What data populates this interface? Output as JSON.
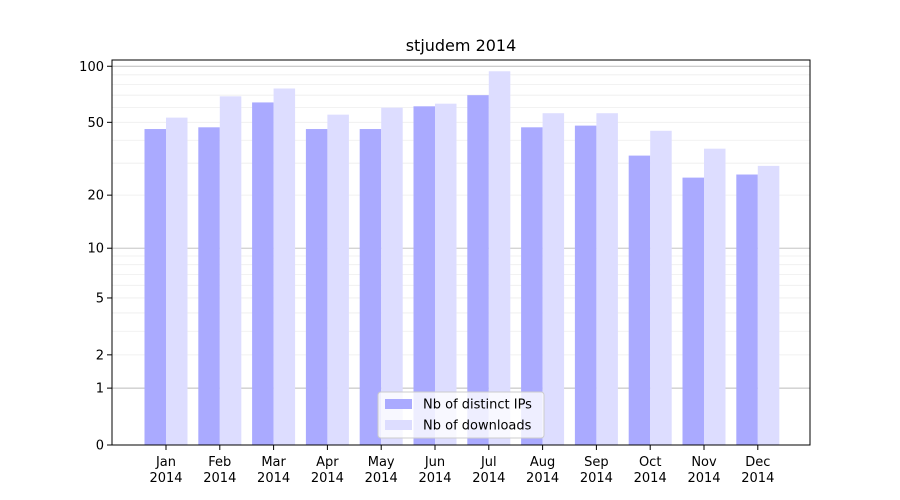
{
  "chart_data": {
    "type": "bar",
    "title": "stjudem 2014",
    "xlabel": "",
    "ylabel": "",
    "y_scale": "log(1+y)",
    "ylim": [
      0,
      100
    ],
    "yticks": [
      0,
      1,
      2,
      5,
      10,
      20,
      50,
      100
    ],
    "grid": "horizontal",
    "legend_position": "bottom-center",
    "categories": [
      [
        "Jan",
        "2014"
      ],
      [
        "Feb",
        "2014"
      ],
      [
        "Mar",
        "2014"
      ],
      [
        "Apr",
        "2014"
      ],
      [
        "May",
        "2014"
      ],
      [
        "Jun",
        "2014"
      ],
      [
        "Jul",
        "2014"
      ],
      [
        "Aug",
        "2014"
      ],
      [
        "Sep",
        "2014"
      ],
      [
        "Oct",
        "2014"
      ],
      [
        "Nov",
        "2014"
      ],
      [
        "Dec",
        "2014"
      ]
    ],
    "series": [
      {
        "name": "Nb of distinct IPs",
        "color": "#aaaaff",
        "values": [
          46,
          47,
          64,
          46,
          46,
          61,
          70,
          47,
          48,
          33,
          25,
          26
        ]
      },
      {
        "name": "Nb of downloads",
        "color": "#ddddff",
        "values": [
          53,
          69,
          76,
          55,
          60,
          63,
          94,
          56,
          56,
          45,
          36,
          29
        ]
      }
    ]
  }
}
